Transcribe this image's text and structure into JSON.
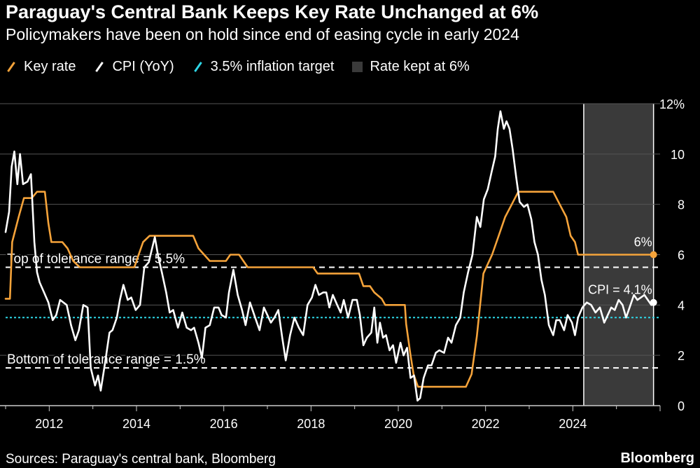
{
  "title": "Paraguay's Central Bank Keeps Key Rate Unchanged at 6%",
  "subtitle": "Policymakers have been on hold since end of easing cycle in early 2024",
  "source": "Sources: Paraguay's central bank, Bloomberg",
  "brand": "Bloomberg",
  "colors": {
    "key_rate": "#f5a33a",
    "cpi": "#ffffff",
    "target": "#2ed6e6",
    "shade": "#3a3a3a",
    "grid": "#555555"
  },
  "legend": [
    {
      "label": "Key rate",
      "kind": "line",
      "color": "#f5a33a"
    },
    {
      "label": "CPI (YoY)",
      "kind": "line",
      "color": "#ffffff"
    },
    {
      "label": "3.5% inflation target",
      "kind": "line",
      "color": "#2ed6e6"
    },
    {
      "label": "Rate kept at 6%",
      "kind": "box",
      "color": "#3a3a3a"
    }
  ],
  "chart_data": {
    "type": "line",
    "title": "Paraguay's Central Bank Keeps Key Rate Unchanged at 6%",
    "xlim": [
      2011.0,
      2026.0
    ],
    "ylim": [
      0,
      12
    ],
    "y_ticks": [
      0,
      2,
      4,
      6,
      8,
      10,
      12
    ],
    "y_tick_labels": [
      "0",
      "2",
      "4",
      "6",
      "8",
      "10",
      "12%"
    ],
    "x_ticks": [
      2012,
      2014,
      2016,
      2018,
      2020,
      2022,
      2024
    ],
    "x_tick_labels": [
      "2012",
      "2014",
      "2016",
      "2018",
      "2020",
      "2022",
      "2024"
    ],
    "shaded_range": {
      "label": "Rate kept at 6%",
      "x": [
        2024.25,
        2025.85
      ]
    },
    "reference_lines": [
      {
        "label": "Top of tolerance range = 5.5%",
        "y": 5.5,
        "style": "dashed",
        "color": "#ffffff"
      },
      {
        "label": "Bottom of tolerance range = 1.5%",
        "y": 1.5,
        "style": "dashed",
        "color": "#ffffff"
      },
      {
        "label": "3.5% inflation target",
        "y": 3.5,
        "style": "dotted",
        "color": "#2ed6e6"
      }
    ],
    "end_labels": [
      {
        "text": "6%",
        "series": "Key rate",
        "x": 2025.85,
        "y": 6.0
      },
      {
        "text": "CPI = 4.1%",
        "series": "CPI (YoY)",
        "x": 2025.85,
        "y": 4.1
      }
    ],
    "series": [
      {
        "name": "Key rate",
        "color": "#f5a33a",
        "points": [
          [
            2011.0,
            4.25
          ],
          [
            2011.1,
            4.25
          ],
          [
            2011.15,
            6.5
          ],
          [
            2011.3,
            7.5
          ],
          [
            2011.42,
            8.25
          ],
          [
            2011.6,
            8.25
          ],
          [
            2011.72,
            8.5
          ],
          [
            2011.9,
            8.5
          ],
          [
            2011.98,
            7.25
          ],
          [
            2012.05,
            6.5
          ],
          [
            2012.3,
            6.5
          ],
          [
            2012.42,
            6.25
          ],
          [
            2012.55,
            5.75
          ],
          [
            2012.7,
            5.5
          ],
          [
            2013.95,
            5.5
          ],
          [
            2014.05,
            6.0
          ],
          [
            2014.15,
            6.5
          ],
          [
            2014.3,
            6.75
          ],
          [
            2015.3,
            6.75
          ],
          [
            2015.42,
            6.25
          ],
          [
            2015.55,
            6.0
          ],
          [
            2015.68,
            5.75
          ],
          [
            2016.05,
            5.75
          ],
          [
            2016.15,
            6.0
          ],
          [
            2016.35,
            6.0
          ],
          [
            2016.45,
            5.75
          ],
          [
            2016.55,
            5.5
          ],
          [
            2018.05,
            5.5
          ],
          [
            2018.15,
            5.25
          ],
          [
            2019.1,
            5.25
          ],
          [
            2019.2,
            4.75
          ],
          [
            2019.35,
            4.75
          ],
          [
            2019.45,
            4.5
          ],
          [
            2019.62,
            4.25
          ],
          [
            2019.7,
            4.0
          ],
          [
            2020.15,
            4.0
          ],
          [
            2020.18,
            3.25
          ],
          [
            2020.28,
            2.0
          ],
          [
            2020.35,
            1.25
          ],
          [
            2020.45,
            0.75
          ],
          [
            2021.55,
            0.75
          ],
          [
            2021.68,
            1.25
          ],
          [
            2021.8,
            2.75
          ],
          [
            2021.95,
            5.25
          ],
          [
            2022.15,
            6.0
          ],
          [
            2022.3,
            6.75
          ],
          [
            2022.45,
            7.5
          ],
          [
            2022.6,
            8.0
          ],
          [
            2022.75,
            8.5
          ],
          [
            2023.55,
            8.5
          ],
          [
            2023.7,
            8.0
          ],
          [
            2023.85,
            7.5
          ],
          [
            2023.95,
            6.75
          ],
          [
            2024.05,
            6.5
          ],
          [
            2024.12,
            6.0
          ],
          [
            2025.85,
            6.0
          ]
        ]
      },
      {
        "name": "CPI (YoY)",
        "color": "#ffffff",
        "points": [
          [
            2011.0,
            6.9
          ],
          [
            2011.08,
            7.7
          ],
          [
            2011.14,
            9.5
          ],
          [
            2011.2,
            10.1
          ],
          [
            2011.27,
            8.8
          ],
          [
            2011.33,
            10.0
          ],
          [
            2011.4,
            8.8
          ],
          [
            2011.5,
            8.9
          ],
          [
            2011.58,
            9.2
          ],
          [
            2011.66,
            6.5
          ],
          [
            2011.72,
            5.3
          ],
          [
            2011.78,
            4.9
          ],
          [
            2011.88,
            4.5
          ],
          [
            2011.98,
            4.1
          ],
          [
            2012.08,
            3.4
          ],
          [
            2012.16,
            3.6
          ],
          [
            2012.25,
            4.2
          ],
          [
            2012.4,
            4.0
          ],
          [
            2012.5,
            3.2
          ],
          [
            2012.6,
            2.6
          ],
          [
            2012.68,
            3.0
          ],
          [
            2012.78,
            4.0
          ],
          [
            2012.88,
            3.9
          ],
          [
            2012.95,
            1.5
          ],
          [
            2013.05,
            0.8
          ],
          [
            2013.12,
            1.2
          ],
          [
            2013.18,
            0.6
          ],
          [
            2013.28,
            1.7
          ],
          [
            2013.38,
            2.9
          ],
          [
            2013.45,
            3.0
          ],
          [
            2013.55,
            3.5
          ],
          [
            2013.62,
            4.2
          ],
          [
            2013.7,
            4.8
          ],
          [
            2013.8,
            4.2
          ],
          [
            2013.88,
            4.3
          ],
          [
            2013.98,
            3.8
          ],
          [
            2014.08,
            4.0
          ],
          [
            2014.18,
            5.5
          ],
          [
            2014.28,
            5.7
          ],
          [
            2014.42,
            6.7
          ],
          [
            2014.5,
            5.9
          ],
          [
            2014.58,
            5.3
          ],
          [
            2014.68,
            4.5
          ],
          [
            2014.76,
            3.7
          ],
          [
            2014.84,
            3.8
          ],
          [
            2014.95,
            3.1
          ],
          [
            2015.05,
            3.7
          ],
          [
            2015.15,
            3.1
          ],
          [
            2015.25,
            3.0
          ],
          [
            2015.32,
            3.1
          ],
          [
            2015.42,
            2.5
          ],
          [
            2015.5,
            1.9
          ],
          [
            2015.58,
            3.1
          ],
          [
            2015.68,
            3.2
          ],
          [
            2015.78,
            3.9
          ],
          [
            2015.88,
            3.9
          ],
          [
            2015.95,
            3.6
          ],
          [
            2016.05,
            3.5
          ],
          [
            2016.12,
            4.5
          ],
          [
            2016.22,
            5.4
          ],
          [
            2016.32,
            4.4
          ],
          [
            2016.42,
            3.8
          ],
          [
            2016.5,
            3.2
          ],
          [
            2016.6,
            4.1
          ],
          [
            2016.72,
            3.5
          ],
          [
            2016.82,
            3.0
          ],
          [
            2016.92,
            3.9
          ],
          [
            2017.0,
            3.6
          ],
          [
            2017.08,
            3.3
          ],
          [
            2017.16,
            3.5
          ],
          [
            2017.25,
            3.8
          ],
          [
            2017.34,
            2.7
          ],
          [
            2017.42,
            1.8
          ],
          [
            2017.52,
            2.8
          ],
          [
            2017.62,
            3.5
          ],
          [
            2017.72,
            3.1
          ],
          [
            2017.82,
            2.8
          ],
          [
            2017.92,
            4.0
          ],
          [
            2018.02,
            4.3
          ],
          [
            2018.1,
            4.8
          ],
          [
            2018.18,
            4.4
          ],
          [
            2018.28,
            4.5
          ],
          [
            2018.35,
            4.5
          ],
          [
            2018.42,
            3.9
          ],
          [
            2018.5,
            4.4
          ],
          [
            2018.6,
            4.0
          ],
          [
            2018.68,
            3.7
          ],
          [
            2018.75,
            4.2
          ],
          [
            2018.85,
            3.5
          ],
          [
            2018.95,
            4.2
          ],
          [
            2019.05,
            4.2
          ],
          [
            2019.12,
            3.6
          ],
          [
            2019.2,
            2.4
          ],
          [
            2019.28,
            2.7
          ],
          [
            2019.38,
            2.9
          ],
          [
            2019.45,
            3.9
          ],
          [
            2019.52,
            2.5
          ],
          [
            2019.58,
            3.3
          ],
          [
            2019.65,
            2.7
          ],
          [
            2019.72,
            2.8
          ],
          [
            2019.8,
            2.2
          ],
          [
            2019.88,
            2.4
          ],
          [
            2019.95,
            1.7
          ],
          [
            2020.05,
            2.5
          ],
          [
            2020.12,
            2.0
          ],
          [
            2020.2,
            2.3
          ],
          [
            2020.28,
            1.1
          ],
          [
            2020.36,
            1.2
          ],
          [
            2020.44,
            0.2
          ],
          [
            2020.5,
            0.3
          ],
          [
            2020.58,
            1.1
          ],
          [
            2020.68,
            1.6
          ],
          [
            2020.76,
            1.6
          ],
          [
            2020.86,
            2.1
          ],
          [
            2020.94,
            2.2
          ],
          [
            2021.05,
            2.1
          ],
          [
            2021.14,
            2.7
          ],
          [
            2021.22,
            2.5
          ],
          [
            2021.32,
            3.2
          ],
          [
            2021.42,
            3.5
          ],
          [
            2021.5,
            4.5
          ],
          [
            2021.6,
            5.3
          ],
          [
            2021.7,
            6.0
          ],
          [
            2021.8,
            7.5
          ],
          [
            2021.88,
            7.1
          ],
          [
            2021.96,
            8.2
          ],
          [
            2022.05,
            8.6
          ],
          [
            2022.14,
            9.3
          ],
          [
            2022.22,
            9.9
          ],
          [
            2022.28,
            11.0
          ],
          [
            2022.34,
            11.7
          ],
          [
            2022.42,
            11.0
          ],
          [
            2022.48,
            11.3
          ],
          [
            2022.55,
            11.0
          ],
          [
            2022.62,
            10.2
          ],
          [
            2022.7,
            9.1
          ],
          [
            2022.78,
            8.1
          ],
          [
            2022.88,
            7.9
          ],
          [
            2022.96,
            8.0
          ],
          [
            2023.05,
            7.4
          ],
          [
            2023.12,
            6.5
          ],
          [
            2023.2,
            6.0
          ],
          [
            2023.28,
            5.0
          ],
          [
            2023.36,
            4.4
          ],
          [
            2023.45,
            3.2
          ],
          [
            2023.55,
            2.8
          ],
          [
            2023.62,
            3.4
          ],
          [
            2023.7,
            3.4
          ],
          [
            2023.8,
            3.0
          ],
          [
            2023.88,
            3.6
          ],
          [
            2023.98,
            3.3
          ],
          [
            2024.05,
            2.8
          ],
          [
            2024.12,
            3.5
          ],
          [
            2024.22,
            3.9
          ],
          [
            2024.32,
            4.1
          ],
          [
            2024.42,
            4.0
          ],
          [
            2024.52,
            3.7
          ],
          [
            2024.62,
            3.9
          ],
          [
            2024.72,
            3.3
          ],
          [
            2024.8,
            3.6
          ],
          [
            2024.88,
            3.9
          ],
          [
            2024.96,
            3.8
          ],
          [
            2025.05,
            4.2
          ],
          [
            2025.14,
            4.0
          ],
          [
            2025.22,
            3.5
          ],
          [
            2025.3,
            3.9
          ],
          [
            2025.4,
            4.4
          ],
          [
            2025.48,
            4.2
          ],
          [
            2025.56,
            4.3
          ],
          [
            2025.64,
            4.4
          ],
          [
            2025.72,
            4.2
          ],
          [
            2025.8,
            4.0
          ],
          [
            2025.85,
            4.1
          ]
        ]
      }
    ]
  }
}
